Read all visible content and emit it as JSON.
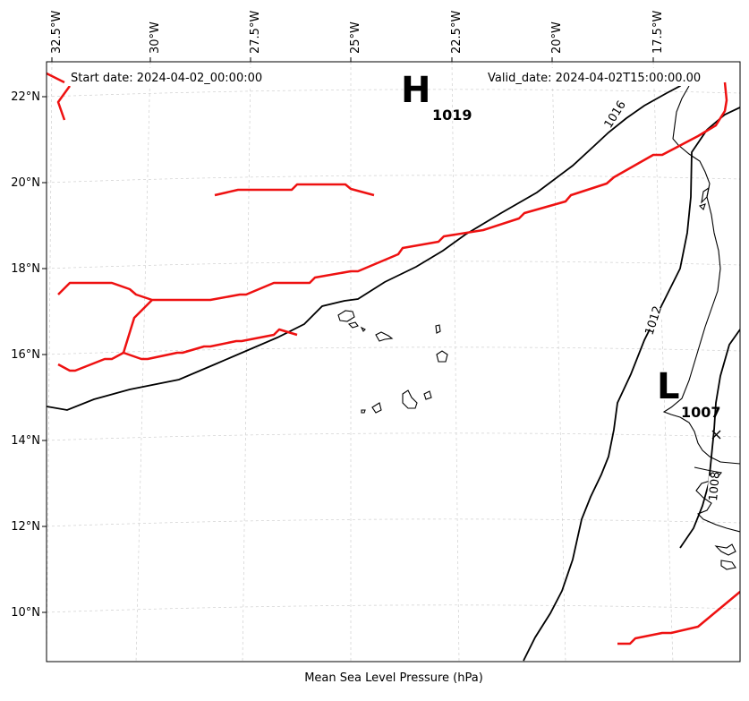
{
  "map": {
    "start_date": "Start date: 2024-04-02_00:00:00",
    "valid_date": "Valid_date: 2024-04-02T15:00:00.00",
    "footer_label": "Mean Sea Level Pressure (hPa)",
    "lon_labels": [
      "32.5°W",
      "30°W",
      "27.5°W",
      "25°W",
      "22.5°W",
      "20°W",
      "17.5°W"
    ],
    "lat_labels": [
      "22°N",
      "20°N",
      "18°N",
      "16°N",
      "14°N",
      "12°N",
      "10°N"
    ],
    "pressure_centers": [
      {
        "type": "H",
        "value": "1019"
      },
      {
        "type": "L",
        "value": "1007"
      }
    ],
    "contour_labels": [
      "1016",
      "1012",
      "1008"
    ],
    "colors": {
      "isobar": "#000000",
      "front": "#ee1111",
      "grid": "#cccccc"
    }
  }
}
